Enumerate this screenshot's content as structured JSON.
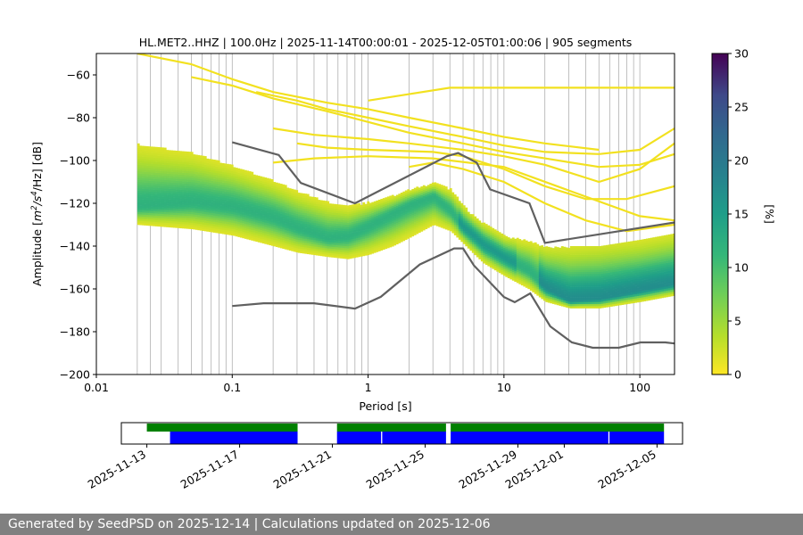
{
  "chart_data": {
    "type": "heatmap",
    "title": "HL.MET2..HHZ | 100.0Hz | 2025-11-14T00:00:01 - 2025-12-05T01:00:06 | 905 segments",
    "xlabel": "Period [s]",
    "ylabel_parts": {
      "a": "Amplitude [",
      "b": "m",
      "c": "2",
      "d": "/s",
      "e": "4",
      "f": "/Hz] [dB]"
    },
    "x_scale": "log",
    "xlim": [
      0.01,
      180
    ],
    "ylim": [
      -200,
      -50
    ],
    "x_ticks": [
      {
        "value": 0.01,
        "label": "0.01"
      },
      {
        "value": 0.1,
        "label": "0.1"
      },
      {
        "value": 1,
        "label": "1"
      },
      {
        "value": 10,
        "label": "10"
      },
      {
        "value": 100,
        "label": "100"
      }
    ],
    "y_ticks": [
      {
        "value": -200,
        "label": "−200"
      },
      {
        "value": -180,
        "label": "−180"
      },
      {
        "value": -160,
        "label": "−160"
      },
      {
        "value": -140,
        "label": "−140"
      },
      {
        "value": -120,
        "label": "−120"
      },
      {
        "value": -100,
        "label": "−100"
      },
      {
        "value": -80,
        "label": "−80"
      },
      {
        "value": -60,
        "label": "−60"
      }
    ],
    "grid_periods": [
      0.02,
      0.025,
      0.03,
      0.04,
      0.05,
      0.06,
      0.07,
      0.08,
      0.09,
      0.1,
      0.2,
      0.3,
      0.4,
      0.5,
      0.6,
      0.7,
      0.8,
      0.9,
      1,
      2,
      3,
      4,
      5,
      6,
      7,
      8,
      9,
      10,
      20,
      30,
      40,
      50,
      60,
      70,
      80,
      90,
      100
    ],
    "colorbar": {
      "label": "[%]",
      "min": 0,
      "max": 30,
      "ticks": [
        {
          "value": 0,
          "label": "0"
        },
        {
          "value": 5,
          "label": "5"
        },
        {
          "value": 10,
          "label": "10"
        },
        {
          "value": 15,
          "label": "15"
        },
        {
          "value": 20,
          "label": "20"
        },
        {
          "value": 25,
          "label": "25"
        },
        {
          "value": 30,
          "label": "30"
        }
      ]
    },
    "psd_band": {
      "periods": [
        0.02,
        0.05,
        0.1,
        0.2,
        0.3,
        0.5,
        0.7,
        1,
        1.5,
        2,
        3,
        4,
        5,
        6,
        7,
        10,
        15,
        20,
        30,
        50,
        100,
        180
      ],
      "mode": [
        -122,
        -120,
        -122,
        -127,
        -132,
        -137,
        -136,
        -131,
        -125,
        -121,
        -117,
        -124,
        -132,
        -136,
        -140,
        -146,
        -152,
        -160,
        -166,
        -165,
        -161,
        -158
      ],
      "upper": [
        -93,
        -97,
        -103,
        -110,
        -115,
        -120,
        -122,
        -120,
        -117,
        -114,
        -111,
        -114,
        -122,
        -127,
        -130,
        -136,
        -138,
        -141,
        -141,
        -140,
        -138,
        -135
      ],
      "lower": [
        -130,
        -132,
        -135,
        -140,
        -143,
        -145,
        -146,
        -144,
        -140,
        -136,
        -130,
        -133,
        -139,
        -144,
        -148,
        -154,
        -160,
        -166,
        -169,
        -169,
        -166,
        -163
      ]
    },
    "nhnm": {
      "x": [
        0.1,
        0.22,
        0.32,
        0.8,
        3.8,
        4.6,
        6.3,
        7.9,
        15.4,
        20,
        354.8
      ],
      "y": [
        -91.5,
        -97.4,
        -110.5,
        -120,
        -98,
        -96.5,
        -101,
        -113.5,
        -120,
        -138.5,
        -126
      ]
    },
    "nlnm": {
      "x": [
        0.1,
        0.17,
        0.4,
        0.8,
        1.24,
        2.4,
        4.3,
        5,
        6,
        10,
        12,
        15.6,
        21.9,
        31.6,
        45,
        70,
        101,
        154,
        180
      ],
      "y": [
        -168,
        -166.7,
        -166.7,
        -169.2,
        -163.7,
        -148.6,
        -141.1,
        -141.1,
        -149,
        -163.8,
        -166.2,
        -162.1,
        -177.5,
        -185,
        -187.5,
        -187.5,
        -185,
        -185,
        -185.5
      ]
    },
    "spurious_lines": [
      {
        "x": [
          0.02,
          0.05,
          0.1,
          0.2,
          0.5,
          1,
          2,
          5,
          10,
          20,
          50
        ],
        "y": [
          -50,
          -55,
          -62,
          -68,
          -73,
          -76,
          -80,
          -85,
          -89,
          -92,
          -95
        ]
      },
      {
        "x": [
          0.05,
          0.1,
          0.2,
          0.5,
          1,
          2,
          5,
          10,
          20,
          50,
          100,
          180
        ],
        "y": [
          -61,
          -65,
          -71,
          -77,
          -82,
          -87,
          -92,
          -96,
          -99,
          -103,
          -102,
          -97
        ]
      },
      {
        "x": [
          0.15,
          0.3,
          0.5,
          1,
          2,
          5,
          10,
          20,
          50,
          100,
          180
        ],
        "y": [
          -68,
          -72,
          -76,
          -80,
          -84,
          -89,
          -93,
          -96,
          -97,
          -95,
          -85
        ]
      },
      {
        "x": [
          0.2,
          0.4,
          1,
          2,
          5,
          10,
          20,
          50,
          100,
          180
        ],
        "y": [
          -85,
          -88,
          -90,
          -92,
          -95,
          -98,
          -102,
          -110,
          -104,
          -92
        ]
      },
      {
        "x": [
          0.3,
          0.5,
          1,
          3,
          5,
          10,
          20,
          40,
          80,
          180
        ],
        "y": [
          -92,
          -94,
          -95,
          -96,
          -98,
          -104,
          -112,
          -118,
          -118,
          -112
        ]
      },
      {
        "x": [
          0.2,
          0.4,
          1,
          3,
          10,
          30,
          100,
          180
        ],
        "y": [
          -101,
          -99,
          -98,
          -99,
          -103,
          -114,
          -126,
          -128
        ]
      },
      {
        "x": [
          1,
          2,
          4,
          10,
          20,
          50,
          100,
          180
        ],
        "y": [
          -72,
          -69,
          -66,
          -66,
          -66,
          -66,
          -66,
          -66
        ]
      },
      {
        "x": [
          2,
          3,
          5,
          10,
          20,
          40,
          80,
          180
        ],
        "y": [
          -103,
          -101,
          -104,
          -110,
          -120,
          -128,
          -133,
          -130
        ]
      }
    ]
  },
  "timeline": {
    "ticks": [
      {
        "day": 0,
        "label": "2025-11-13"
      },
      {
        "day": 4,
        "label": "2025-11-17"
      },
      {
        "day": 8,
        "label": "2025-11-21"
      },
      {
        "day": 12,
        "label": "2025-11-25"
      },
      {
        "day": 16,
        "label": "2025-11-29"
      },
      {
        "day": 18,
        "label": "2025-12-01"
      },
      {
        "day": 22,
        "label": "2025-12-05"
      }
    ],
    "range_days": [
      -1.1,
      23.1
    ],
    "green_bars": [
      [
        0,
        6.5
      ],
      [
        8.2,
        12.9
      ],
      [
        13.1,
        22.3
      ]
    ],
    "blue_bars": [
      [
        1,
        6.5
      ],
      [
        8.2,
        10.1
      ],
      [
        10.15,
        12.9
      ],
      [
        13.1,
        19.9
      ],
      [
        19.95,
        22.3
      ]
    ],
    "green_color": "#008000",
    "blue_color": "#0000ff"
  },
  "footer": {
    "text": "Generated by SeedPSD on 2025-12-14 | Calculations updated on 2025-12-06"
  },
  "colors": {
    "nm_line": "#606060",
    "grid": "#b0b0b0"
  }
}
